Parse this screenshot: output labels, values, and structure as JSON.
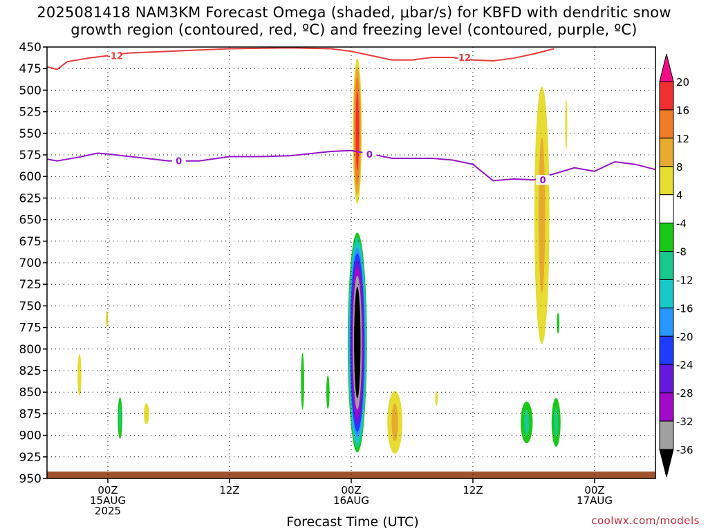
{
  "title": "2025081418 NAM3KM Forecast Omega (shaded, μbar/s) for KBFD with dendritic snow\ngrowth region (contoured, red, ºC) and freezing level (contoured, purple, ºC)",
  "credit": "coolwx.com/models",
  "chart_data": {
    "type": "heatmap",
    "title": "2025081418 NAM3KM Forecast Omega (shaded, μbar/s) for KBFD with dendritic snow growth region (contoured, red, ºC) and freezing level (contoured, purple, ºC)",
    "xlabel": "Forecast Time (UTC)",
    "ylabel": "",
    "x_range_hours": [
      -6,
      54
    ],
    "y_range_hPa": [
      450,
      950
    ],
    "y_ticks": [
      450,
      475,
      500,
      525,
      550,
      575,
      600,
      625,
      650,
      675,
      700,
      725,
      750,
      775,
      800,
      825,
      850,
      875,
      900,
      925,
      950
    ],
    "x_ticks": [
      {
        "hour": 0,
        "label": "00Z",
        "sub": "15AUG",
        "sub2": "2025"
      },
      {
        "hour": 12,
        "label": "12Z",
        "sub": "",
        "sub2": ""
      },
      {
        "hour": 24,
        "label": "00Z",
        "sub": "16AUG",
        "sub2": ""
      },
      {
        "hour": 36,
        "label": "12Z",
        "sub": "",
        "sub2": ""
      },
      {
        "hour": 48,
        "label": "00Z",
        "sub": "17AUG",
        "sub2": ""
      }
    ],
    "grid": true,
    "colorbar": {
      "labels": [
        20,
        16,
        12,
        8,
        4,
        -4,
        -8,
        -12,
        -16,
        -20,
        -24,
        -28,
        -32,
        -36
      ],
      "colors": [
        "#f20c8a",
        "#f03030",
        "#ef7d27",
        "#e6aa30",
        "#e6dc32",
        "#ffffff",
        "#19c819",
        "#19c88c",
        "#19c8c8",
        "#2896ff",
        "#1e3cff",
        "#6419dc",
        "#a00ac8",
        "#a0a0a0",
        "#000000"
      ]
    },
    "dgz_label": "-12",
    "dgz_line": [
      [
        -6,
        473
      ],
      [
        -5,
        476
      ],
      [
        -4,
        467
      ],
      [
        -2,
        463
      ],
      [
        0,
        460
      ],
      [
        2,
        457
      ],
      [
        6,
        455
      ],
      [
        12,
        452
      ],
      [
        18,
        451
      ],
      [
        22,
        452
      ],
      [
        24,
        455
      ],
      [
        26,
        460
      ],
      [
        28,
        465
      ],
      [
        30,
        465
      ],
      [
        32,
        462
      ],
      [
        34,
        462
      ],
      [
        36,
        465
      ],
      [
        38,
        466
      ],
      [
        40,
        463
      ],
      [
        42,
        458
      ],
      [
        44,
        452
      ]
    ],
    "freezing_label": "0",
    "freezing_line": [
      [
        -6,
        580
      ],
      [
        -5,
        582
      ],
      [
        -3,
        578
      ],
      [
        -1,
        573
      ],
      [
        0,
        574
      ],
      [
        3,
        578
      ],
      [
        6,
        582
      ],
      [
        9,
        582
      ],
      [
        12,
        577
      ],
      [
        15,
        577
      ],
      [
        18,
        576
      ],
      [
        22,
        571
      ],
      [
        24,
        570
      ],
      [
        26,
        574
      ],
      [
        28,
        579
      ],
      [
        32,
        579
      ],
      [
        34,
        581
      ],
      [
        36,
        586
      ],
      [
        38,
        605
      ],
      [
        40,
        603
      ],
      [
        42,
        604
      ],
      [
        44,
        597
      ],
      [
        46,
        590
      ],
      [
        48,
        594
      ],
      [
        50,
        583
      ],
      [
        52,
        586
      ],
      [
        54,
        592
      ]
    ],
    "omega_shapes": [
      {
        "hour": 24.6,
        "p_top": 455,
        "p_bot": 640,
        "half_width_h": 0.5,
        "value": 16
      },
      {
        "hour": 24.6,
        "p_top": 660,
        "p_bot": 925,
        "half_width_h": 1.0,
        "value": -36
      },
      {
        "hour": 42.8,
        "p_top": 460,
        "p_bot": 830,
        "half_width_h": 1.0,
        "value": 8
      },
      {
        "hour": 45.2,
        "p_top": 480,
        "p_bot": 600,
        "half_width_h": 0.3,
        "value": 4
      },
      {
        "hour": -2.8,
        "p_top": 780,
        "p_bot": 880,
        "half_width_h": 0.6,
        "value": 4
      },
      {
        "hour": 3.8,
        "p_top": 850,
        "p_bot": 900,
        "half_width_h": 0.8,
        "value": 4
      },
      {
        "hour": 19.2,
        "p_top": 770,
        "p_bot": 905,
        "half_width_h": 0.5,
        "value": -4
      },
      {
        "hour": 21.7,
        "p_top": 810,
        "p_bot": 890,
        "half_width_h": 0.5,
        "value": -4
      },
      {
        "hour": 28.3,
        "p_top": 840,
        "p_bot": 930,
        "half_width_h": 1.0,
        "value": 8
      },
      {
        "hour": 41.3,
        "p_top": 855,
        "p_bot": 915,
        "half_width_h": 0.8,
        "value": -8
      },
      {
        "hour": 44.2,
        "p_top": 850,
        "p_bot": 920,
        "half_width_h": 0.6,
        "value": -8
      },
      {
        "hour": 44.4,
        "p_top": 745,
        "p_bot": 795,
        "half_width_h": 0.4,
        "value": -4
      },
      {
        "hour": -0.1,
        "p_top": 745,
        "p_bot": 785,
        "half_width_h": 0.15,
        "value": 4
      },
      {
        "hour": 32.4,
        "p_top": 840,
        "p_bot": 875,
        "half_width_h": 0.4,
        "value": 4
      },
      {
        "hour": 1.2,
        "p_top": 850,
        "p_bot": 910,
        "half_width_h": 0.3,
        "value": -8
      }
    ]
  }
}
